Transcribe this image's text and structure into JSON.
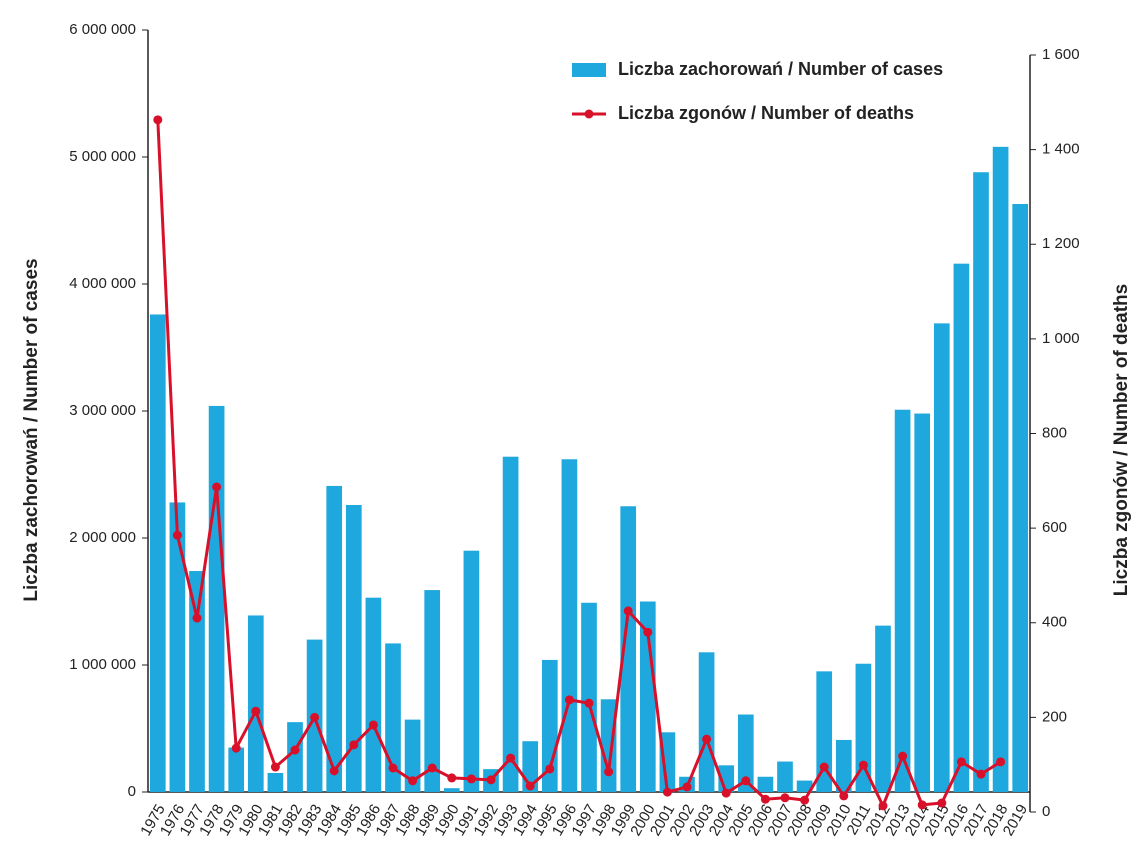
{
  "chart_data": {
    "type": "bar_line",
    "y_label": "Liczba zachorowań  /  Number of cases",
    "y2_label": "Liczba zgonów  /  Number of deaths",
    "categories": [
      "1975",
      "1976",
      "1977",
      "1978",
      "1979",
      "1980",
      "1981",
      "1982",
      "1983",
      "1984",
      "1985",
      "1986",
      "1987",
      "1988",
      "1989",
      "1990",
      "1991",
      "1992",
      "1993",
      "1994",
      "1995",
      "1996",
      "1997",
      "1998",
      "1999",
      "2000",
      "2001",
      "2002",
      "2003",
      "2004",
      "2005",
      "2006",
      "2007",
      "2008",
      "2009",
      "2010",
      "2011",
      "2012",
      "2013",
      "2014",
      "2015",
      "2016",
      "2017",
      "2018",
      "2019"
    ],
    "series": [
      {
        "name": "Liczba zachorowań / Number of cases",
        "color": "#1fa8dd",
        "type": "bar",
        "values": [
          3760000,
          2280000,
          1740000,
          3040000,
          350000,
          1390000,
          150000,
          550000,
          1200000,
          2410000,
          2260000,
          1530000,
          1170000,
          570000,
          1590000,
          30000,
          1900000,
          180000,
          2640000,
          400000,
          1040000,
          2620000,
          1490000,
          730000,
          2250000,
          1500000,
          470000,
          120000,
          1100000,
          210000,
          610000,
          120000,
          240000,
          90000,
          950000,
          410000,
          1010000,
          1310000,
          3010000,
          2980000,
          3690000,
          4160000,
          4880000,
          5080000,
          4630000
        ]
      },
      {
        "name": "Liczba zgonów / Number of deaths",
        "color": "#d8102a",
        "type": "line",
        "axis": "y2",
        "values": [
          1463,
          585,
          410,
          687,
          135,
          213,
          95,
          131,
          200,
          87,
          142,
          184,
          93,
          66,
          93,
          72,
          70,
          68,
          114,
          55,
          91,
          237,
          230,
          85,
          425,
          380,
          42,
          53,
          154,
          40,
          66,
          27,
          30,
          25,
          95,
          34,
          99,
          13,
          118,
          15,
          19,
          106,
          80,
          106,
          null
        ]
      }
    ],
    "ylim": [
      0,
      6000000
    ],
    "yticks": [
      {
        "value": 0,
        "label": "0"
      },
      {
        "value": 1000000,
        "label": "1 000 000"
      },
      {
        "value": 2000000,
        "label": "2 000 000"
      },
      {
        "value": 3000000,
        "label": "3 000 000"
      },
      {
        "value": 4000000,
        "label": "4 000 000"
      },
      {
        "value": 5000000,
        "label": "5 000 000"
      },
      {
        "value": 6000000,
        "label": "6 000 000"
      }
    ],
    "y2lim": [
      0,
      1600
    ],
    "y2ticks": [
      0,
      200,
      400,
      600,
      800,
      {
        "value": 1000,
        "label": "1 000"
      },
      {
        "value": 1200,
        "label": "1 200"
      },
      {
        "value": 1400,
        "label": "1 400"
      },
      {
        "value": 1600,
        "label": "1 600"
      }
    ],
    "legend": "top-right"
  }
}
